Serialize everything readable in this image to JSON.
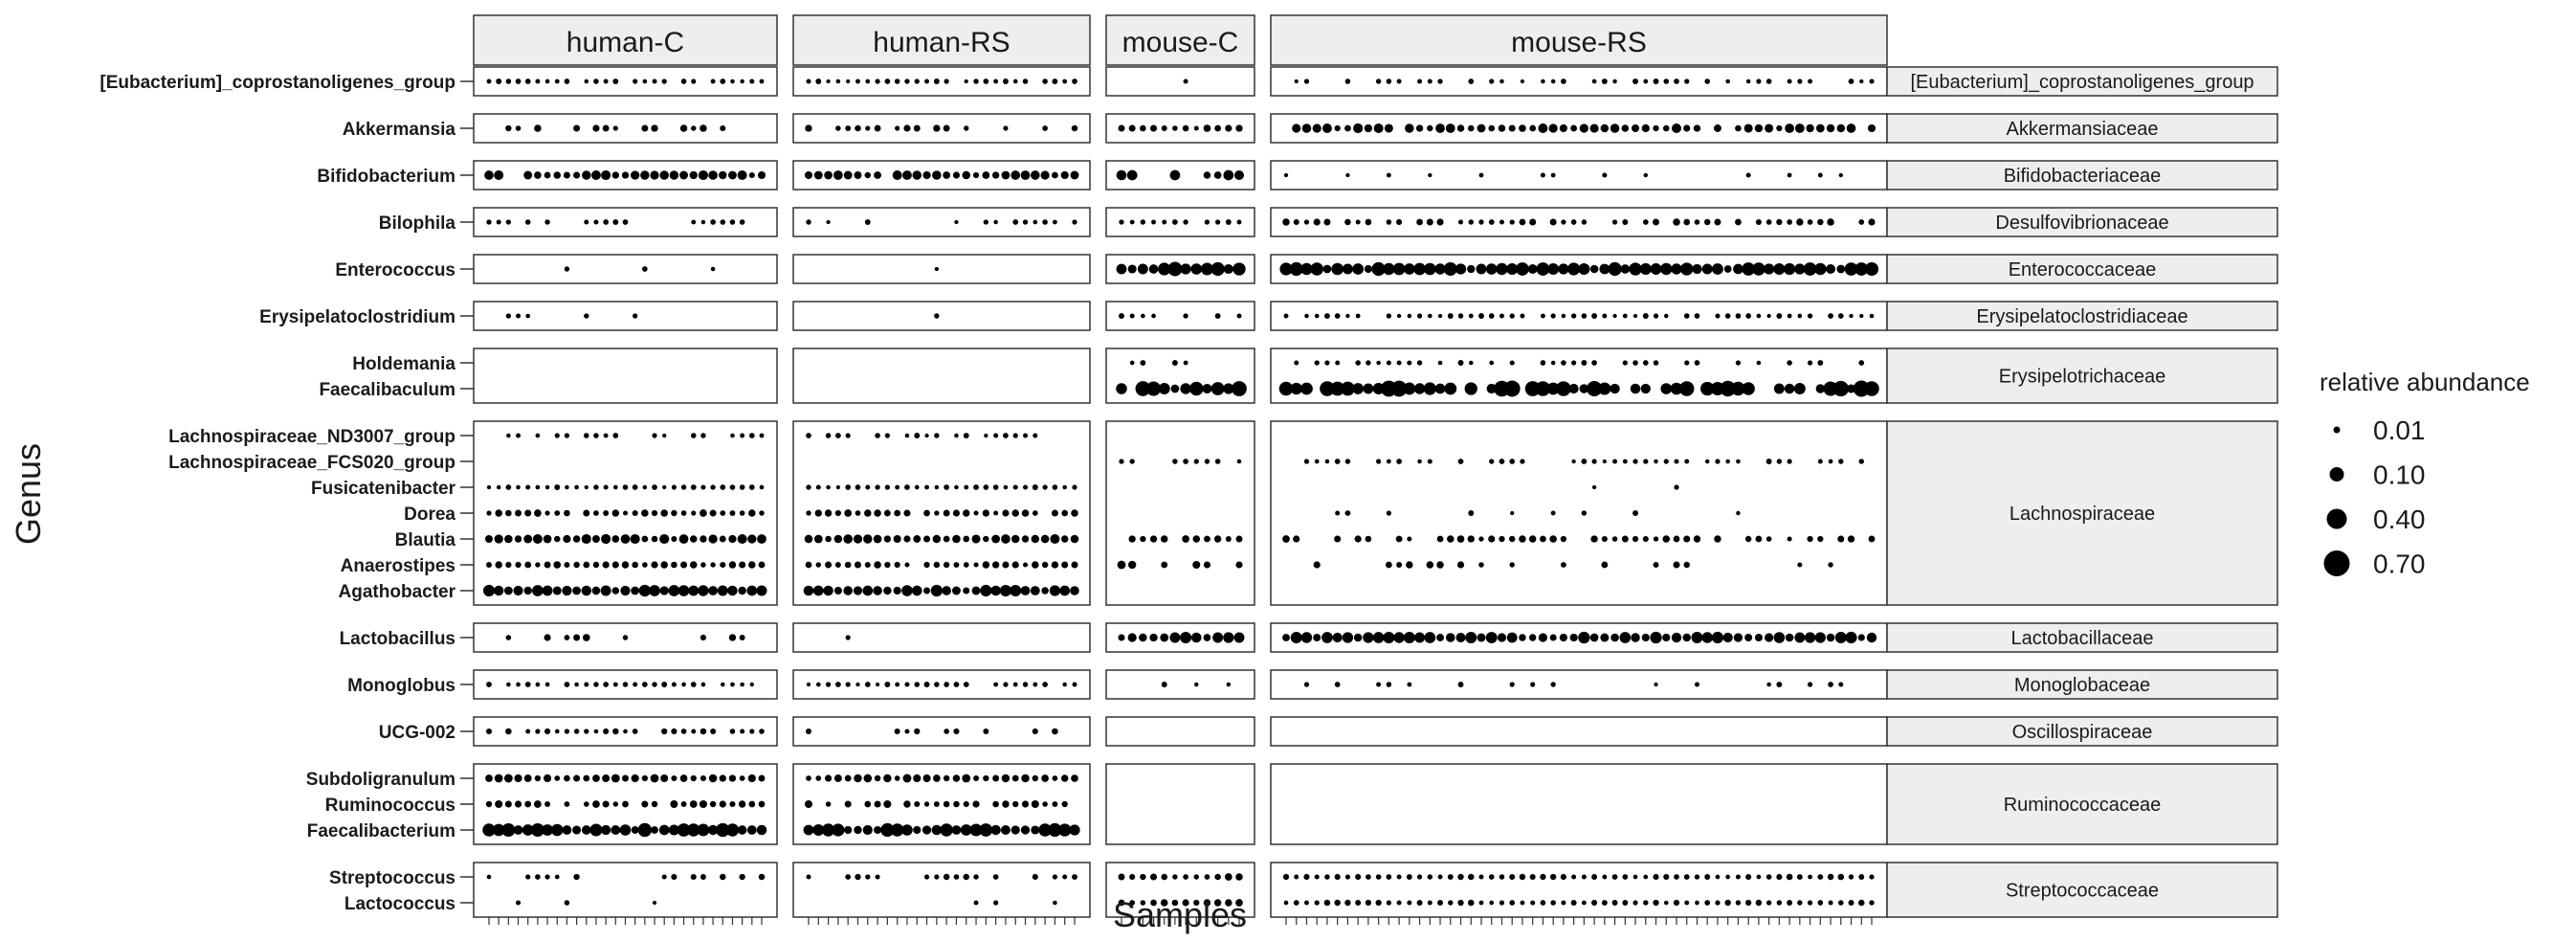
{
  "chart_data": {
    "type": "dot",
    "xlabel": "Samples",
    "ylabel": "Genus",
    "legend": {
      "title": "relative abundance",
      "placement": "right",
      "values": [
        "0.01",
        "0.10",
        "0.40",
        "0.70"
      ]
    },
    "facets": [
      {
        "name": "human-C",
        "n_samples": 29
      },
      {
        "name": "human-RS",
        "n_samples": 28
      },
      {
        "name": "mouse-C",
        "n_samples": 12
      },
      {
        "name": "mouse-RS",
        "n_samples": 58
      }
    ],
    "families": [
      {
        "name": "[Eubacterium]_coprostanoligenes_group",
        "genera": [
          {
            "name": "[Eubacterium]_coprostanoligenes_group",
            "presence": [
              0.85,
              0.85,
              0.2,
              0.6
            ],
            "abundance": [
              0.02,
              0.02,
              0.02,
              0.02
            ]
          }
        ]
      },
      {
        "name": "Akkermansiaceae",
        "genera": [
          {
            "name": "Akkermansia",
            "presence": [
              0.6,
              0.55,
              1.0,
              0.9
            ],
            "abundance": [
              0.05,
              0.05,
              0.05,
              0.12
            ]
          }
        ]
      },
      {
        "name": "Bifidobacteriaceae",
        "genera": [
          {
            "name": "Bifidobacterium",
            "presence": [
              0.95,
              0.95,
              0.45,
              0.3
            ],
            "abundance": [
              0.12,
              0.12,
              0.15,
              0.01
            ]
          }
        ]
      },
      {
        "name": "Desulfovibrionaceae",
        "genera": [
          {
            "name": "Bilophila",
            "presence": [
              0.5,
              0.45,
              0.85,
              0.75
            ],
            "abundance": [
              0.02,
              0.02,
              0.02,
              0.05
            ]
          }
        ]
      },
      {
        "name": "Enterococcaceae",
        "genera": [
          {
            "name": "Enterococcus",
            "presence": [
              0.05,
              0.05,
              1.0,
              1.0
            ],
            "abundance": [
              0.02,
              0.02,
              0.35,
              0.3
            ]
          }
        ]
      },
      {
        "name": "Erysipelatoclostridiaceae",
        "genera": [
          {
            "name": "Erysipelatoclostridium",
            "presence": [
              0.1,
              0.05,
              0.8,
              0.9
            ],
            "abundance": [
              0.02,
              0.02,
              0.02,
              0.02
            ]
          }
        ]
      },
      {
        "name": "Erysipelotrichaceae",
        "genera": [
          {
            "name": "Holdemania",
            "presence": [
              0,
              0,
              0.5,
              0.65
            ],
            "abundance": [
              0,
              0,
              0.02,
              0.02
            ]
          },
          {
            "name": "Faecalibaculum",
            "presence": [
              0,
              0,
              0.85,
              0.85
            ],
            "abundance": [
              0,
              0,
              0.4,
              0.45
            ]
          }
        ]
      },
      {
        "name": "Lachnospiraceae",
        "genera": [
          {
            "name": "Lachnospiraceae_ND3007_group",
            "presence": [
              0.7,
              0.6,
              0,
              0
            ],
            "abundance": [
              0.02,
              0.02,
              0,
              0
            ]
          },
          {
            "name": "Lachnospiraceae_FCS020_group",
            "presence": [
              0,
              0,
              0.7,
              0.75
            ],
            "abundance": [
              0,
              0,
              0.02,
              0.02
            ]
          },
          {
            "name": "Fusicatenibacter",
            "presence": [
              1.0,
              1.0,
              0,
              0.05
            ],
            "abundance": [
              0.02,
              0.02,
              0,
              0.02
            ]
          },
          {
            "name": "Dorea",
            "presence": [
              0.95,
              0.95,
              0,
              0.1
            ],
            "abundance": [
              0.05,
              0.05,
              0,
              0.02
            ]
          },
          {
            "name": "Blautia",
            "presence": [
              1.0,
              1.0,
              0.9,
              0.75
            ],
            "abundance": [
              0.12,
              0.12,
              0.05,
              0.05
            ]
          },
          {
            "name": "Anaerostipes",
            "presence": [
              1.0,
              0.95,
              0.5,
              0.3
            ],
            "abundance": [
              0.05,
              0.05,
              0.08,
              0.05
            ]
          },
          {
            "name": "Agathobacter",
            "presence": [
              1.0,
              1.0,
              0,
              0
            ],
            "abundance": [
              0.2,
              0.2,
              0,
              0
            ]
          }
        ]
      },
      {
        "name": "Lactobacillaceae",
        "genera": [
          {
            "name": "Lactobacillus",
            "presence": [
              0.2,
              0.15,
              1.0,
              1.0
            ],
            "abundance": [
              0.05,
              0.02,
              0.2,
              0.2
            ]
          }
        ]
      },
      {
        "name": "Monoglobaceae",
        "genera": [
          {
            "name": "Monoglobus",
            "presence": [
              0.9,
              0.75,
              0.25,
              0.3
            ],
            "abundance": [
              0.02,
              0.02,
              0.02,
              0.02
            ]
          }
        ]
      },
      {
        "name": "Oscillospiraceae",
        "genera": [
          {
            "name": "UCG-002",
            "presence": [
              0.8,
              0.45,
              0,
              0
            ],
            "abundance": [
              0.03,
              0.03,
              0,
              0
            ]
          }
        ]
      },
      {
        "name": "Ruminococcaceae",
        "genera": [
          {
            "name": "Subdoligranulum",
            "presence": [
              1.0,
              1.0,
              0,
              0
            ],
            "abundance": [
              0.08,
              0.08,
              0,
              0
            ]
          },
          {
            "name": "Ruminococcus",
            "presence": [
              0.85,
              0.85,
              0,
              0
            ],
            "abundance": [
              0.06,
              0.06,
              0,
              0
            ]
          },
          {
            "name": "Faecalibacterium",
            "presence": [
              1.0,
              1.0,
              0,
              0
            ],
            "abundance": [
              0.3,
              0.3,
              0,
              0
            ]
          }
        ]
      },
      {
        "name": "Streptococcaceae",
        "genera": [
          {
            "name": "Streptococcus",
            "presence": [
              0.6,
              0.45,
              1.0,
              1.0
            ],
            "abundance": [
              0.03,
              0.03,
              0.05,
              0.03
            ]
          },
          {
            "name": "Lactococcus",
            "presence": [
              0.05,
              0.1,
              1.0,
              1.0
            ],
            "abundance": [
              0.02,
              0.02,
              0.06,
              0.03
            ]
          }
        ]
      }
    ]
  }
}
